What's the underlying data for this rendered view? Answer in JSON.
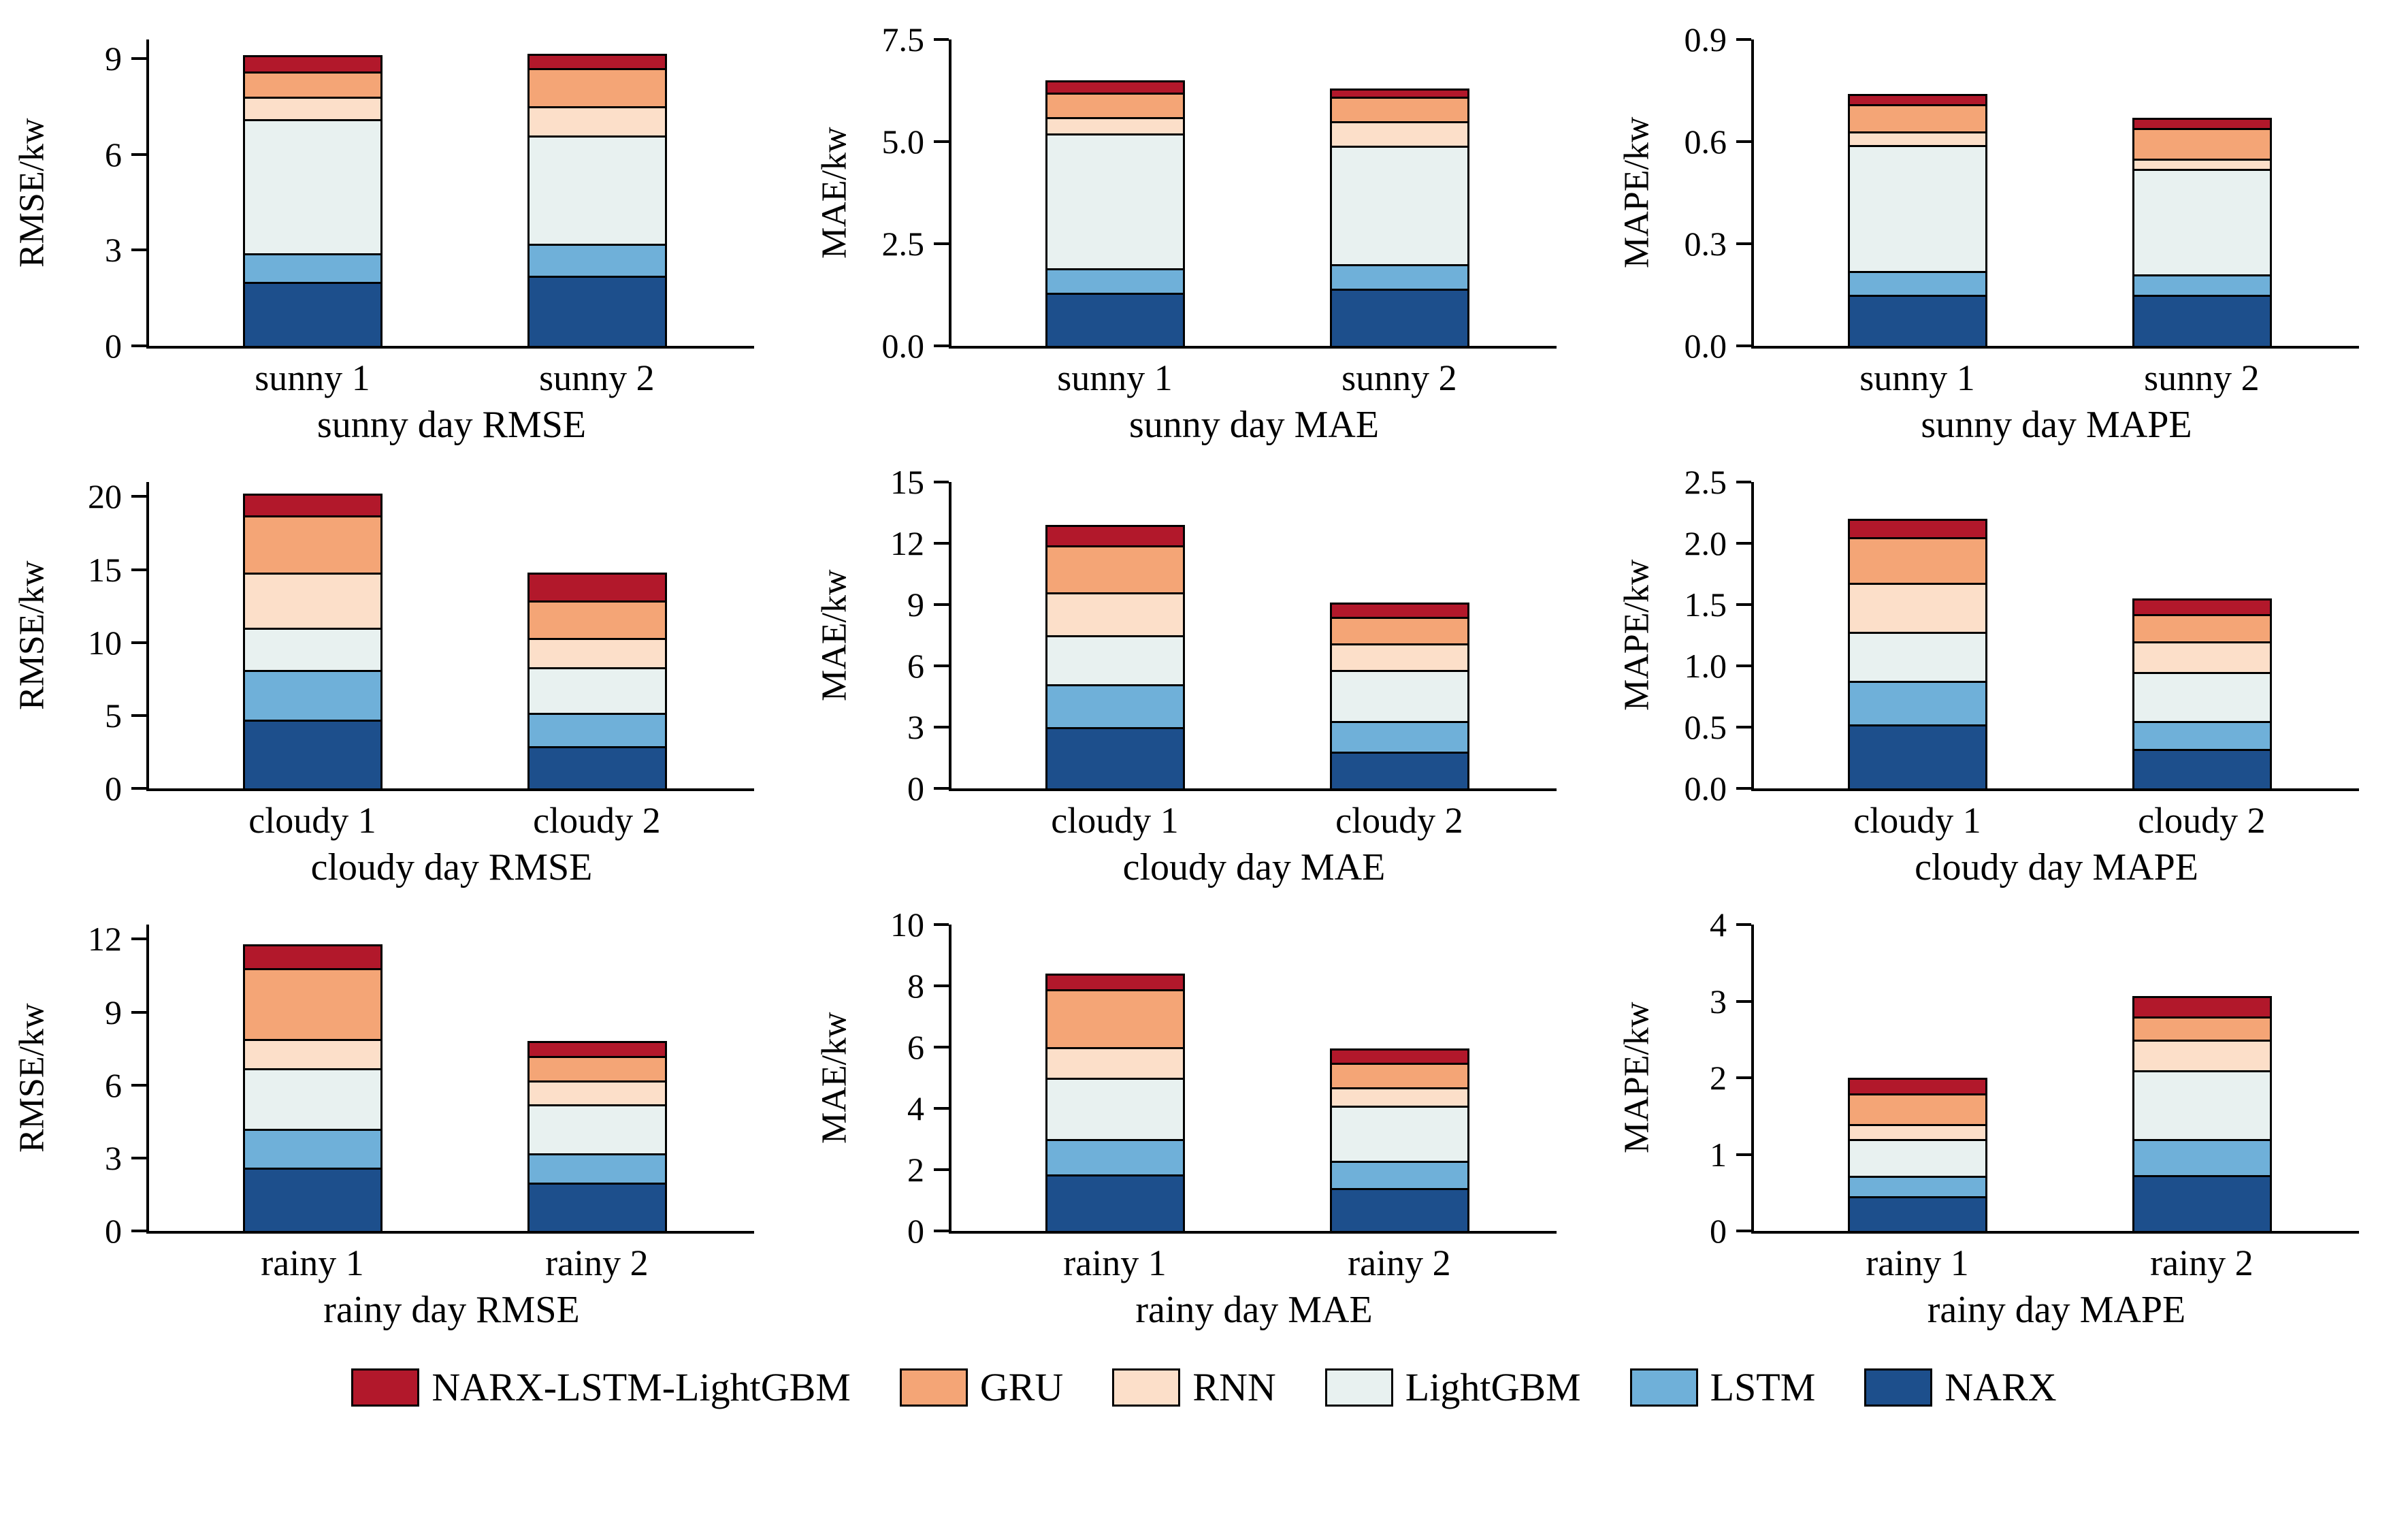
{
  "page": {
    "background": "#ffffff"
  },
  "legend": {
    "items": [
      {
        "label": "NARX-LSTM-LightGBM",
        "color": "#b2182b"
      },
      {
        "label": "GRU",
        "color": "#f4a576"
      },
      {
        "label": "RNN",
        "color": "#fcdfc9"
      },
      {
        "label": "LightGBM",
        "color": "#e8f1f0"
      },
      {
        "label": "LSTM",
        "color": "#6fb0d9"
      },
      {
        "label": "NARX",
        "color": "#1d4f8c"
      }
    ]
  },
  "chart_data": [
    {
      "type": "bar",
      "title": "sunny day RMSE",
      "ylabel": "RMSE/kw",
      "categories": [
        "sunny 1",
        "sunny 2"
      ],
      "ylim": [
        0,
        9.6
      ],
      "yticks": [
        {
          "value": 0,
          "label": "0"
        },
        {
          "value": 3,
          "label": "3"
        },
        {
          "value": 6,
          "label": "6"
        },
        {
          "value": 9,
          "label": "9"
        }
      ],
      "series": [
        {
          "name": "NARX",
          "values": [
            2.0,
            2.2
          ]
        },
        {
          "name": "LSTM",
          "values": [
            0.9,
            1.0
          ]
        },
        {
          "name": "LightGBM",
          "values": [
            4.2,
            3.4
          ]
        },
        {
          "name": "RNN",
          "values": [
            0.7,
            0.9
          ]
        },
        {
          "name": "GRU",
          "values": [
            0.8,
            1.2
          ]
        },
        {
          "name": "NARX-LSTM-LightGBM",
          "values": [
            0.5,
            0.45
          ]
        }
      ]
    },
    {
      "type": "bar",
      "title": "sunny day MAE",
      "ylabel": "MAE/kw",
      "categories": [
        "sunny 1",
        "sunny 2"
      ],
      "ylim": [
        0,
        7.5
      ],
      "yticks": [
        {
          "value": 0,
          "label": "0.0"
        },
        {
          "value": 2.5,
          "label": "2.5"
        },
        {
          "value": 5.0,
          "label": "5.0"
        },
        {
          "value": 7.5,
          "label": "7.5"
        }
      ],
      "series": [
        {
          "name": "NARX",
          "values": [
            1.3,
            1.4
          ]
        },
        {
          "name": "LSTM",
          "values": [
            0.6,
            0.6
          ]
        },
        {
          "name": "LightGBM",
          "values": [
            3.3,
            2.9
          ]
        },
        {
          "name": "RNN",
          "values": [
            0.4,
            0.6
          ]
        },
        {
          "name": "GRU",
          "values": [
            0.6,
            0.6
          ]
        },
        {
          "name": "NARX-LSTM-LightGBM",
          "values": [
            0.3,
            0.2
          ]
        }
      ]
    },
    {
      "type": "bar",
      "title": "sunny day MAPE",
      "ylabel": "MAPE/kw",
      "categories": [
        "sunny 1",
        "sunny 2"
      ],
      "ylim": [
        0,
        0.9
      ],
      "yticks": [
        {
          "value": 0,
          "label": "0.0"
        },
        {
          "value": 0.3,
          "label": "0.3"
        },
        {
          "value": 0.6,
          "label": "0.6"
        },
        {
          "value": 0.9,
          "label": "0.9"
        }
      ],
      "series": [
        {
          "name": "NARX",
          "values": [
            0.15,
            0.15
          ]
        },
        {
          "name": "LSTM",
          "values": [
            0.07,
            0.06
          ]
        },
        {
          "name": "LightGBM",
          "values": [
            0.37,
            0.31
          ]
        },
        {
          "name": "RNN",
          "values": [
            0.04,
            0.03
          ]
        },
        {
          "name": "GRU",
          "values": [
            0.08,
            0.09
          ]
        },
        {
          "name": "NARX-LSTM-LightGBM",
          "values": [
            0.03,
            0.03
          ]
        }
      ]
    },
    {
      "type": "bar",
      "title": "cloudy day RMSE",
      "ylabel": "RMSE/kw",
      "categories": [
        "cloudy 1",
        "cloudy 2"
      ],
      "ylim": [
        0,
        21
      ],
      "yticks": [
        {
          "value": 0,
          "label": "0"
        },
        {
          "value": 5,
          "label": "5"
        },
        {
          "value": 10,
          "label": "10"
        },
        {
          "value": 15,
          "label": "15"
        },
        {
          "value": 20,
          "label": "20"
        }
      ],
      "series": [
        {
          "name": "NARX",
          "values": [
            4.7,
            2.9
          ]
        },
        {
          "name": "LSTM",
          "values": [
            3.4,
            2.3
          ]
        },
        {
          "name": "LightGBM",
          "values": [
            2.9,
            3.1
          ]
        },
        {
          "name": "RNN",
          "values": [
            3.8,
            2.0
          ]
        },
        {
          "name": "GRU",
          "values": [
            3.9,
            2.6
          ]
        },
        {
          "name": "NARX-LSTM-LightGBM",
          "values": [
            1.5,
            1.9
          ]
        }
      ]
    },
    {
      "type": "bar",
      "title": "cloudy day MAE",
      "ylabel": "MAE/kw",
      "categories": [
        "cloudy 1",
        "cloudy 2"
      ],
      "ylim": [
        0,
        15
      ],
      "yticks": [
        {
          "value": 0,
          "label": "0"
        },
        {
          "value": 3,
          "label": "3"
        },
        {
          "value": 6,
          "label": "6"
        },
        {
          "value": 9,
          "label": "9"
        },
        {
          "value": 12,
          "label": "12"
        },
        {
          "value": 15,
          "label": "15"
        }
      ],
      "series": [
        {
          "name": "NARX",
          "values": [
            3.0,
            1.8
          ]
        },
        {
          "name": "LSTM",
          "values": [
            2.1,
            1.5
          ]
        },
        {
          "name": "LightGBM",
          "values": [
            2.4,
            2.5
          ]
        },
        {
          "name": "RNN",
          "values": [
            2.1,
            1.3
          ]
        },
        {
          "name": "GRU",
          "values": [
            2.3,
            1.3
          ]
        },
        {
          "name": "NARX-LSTM-LightGBM",
          "values": [
            1.0,
            0.7
          ]
        }
      ]
    },
    {
      "type": "bar",
      "title": "cloudy day MAPE",
      "ylabel": "MAPE/kw",
      "categories": [
        "cloudy 1",
        "cloudy 2"
      ],
      "ylim": [
        0,
        2.5
      ],
      "yticks": [
        {
          "value": 0,
          "label": "0.0"
        },
        {
          "value": 0.5,
          "label": "0.5"
        },
        {
          "value": 1.0,
          "label": "1.0"
        },
        {
          "value": 1.5,
          "label": "1.5"
        },
        {
          "value": 2.0,
          "label": "2.0"
        },
        {
          "value": 2.5,
          "label": "2.5"
        }
      ],
      "series": [
        {
          "name": "NARX",
          "values": [
            0.52,
            0.32
          ]
        },
        {
          "name": "LSTM",
          "values": [
            0.36,
            0.23
          ]
        },
        {
          "name": "LightGBM",
          "values": [
            0.4,
            0.4
          ]
        },
        {
          "name": "RNN",
          "values": [
            0.4,
            0.25
          ]
        },
        {
          "name": "GRU",
          "values": [
            0.37,
            0.22
          ]
        },
        {
          "name": "NARX-LSTM-LightGBM",
          "values": [
            0.15,
            0.13
          ]
        }
      ]
    },
    {
      "type": "bar",
      "title": "rainy day RMSE",
      "ylabel": "RMSE/kw",
      "categories": [
        "rainy 1",
        "rainy 2"
      ],
      "ylim": [
        0,
        12.6
      ],
      "yticks": [
        {
          "value": 0,
          "label": "0"
        },
        {
          "value": 3,
          "label": "3"
        },
        {
          "value": 6,
          "label": "6"
        },
        {
          "value": 9,
          "label": "9"
        },
        {
          "value": 12,
          "label": "12"
        }
      ],
      "series": [
        {
          "name": "NARX",
          "values": [
            2.6,
            2.0
          ]
        },
        {
          "name": "LSTM",
          "values": [
            1.6,
            1.2
          ]
        },
        {
          "name": "LightGBM",
          "values": [
            2.5,
            2.0
          ]
        },
        {
          "name": "RNN",
          "values": [
            1.2,
            1.0
          ]
        },
        {
          "name": "GRU",
          "values": [
            2.9,
            1.0
          ]
        },
        {
          "name": "NARX-LSTM-LightGBM",
          "values": [
            1.0,
            0.6
          ]
        }
      ]
    },
    {
      "type": "bar",
      "title": "rainy day MAE",
      "ylabel": "MAE/kw",
      "categories": [
        "rainy 1",
        "rainy 2"
      ],
      "ylim": [
        0,
        10
      ],
      "yticks": [
        {
          "value": 0,
          "label": "0"
        },
        {
          "value": 2,
          "label": "2"
        },
        {
          "value": 4,
          "label": "4"
        },
        {
          "value": 6,
          "label": "6"
        },
        {
          "value": 8,
          "label": "8"
        },
        {
          "value": 10,
          "label": "10"
        }
      ],
      "series": [
        {
          "name": "NARX",
          "values": [
            1.85,
            1.4
          ]
        },
        {
          "name": "LSTM",
          "values": [
            1.15,
            0.9
          ]
        },
        {
          "name": "LightGBM",
          "values": [
            2.0,
            1.8
          ]
        },
        {
          "name": "RNN",
          "values": [
            1.0,
            0.6
          ]
        },
        {
          "name": "GRU",
          "values": [
            1.9,
            0.8
          ]
        },
        {
          "name": "NARX-LSTM-LightGBM",
          "values": [
            0.5,
            0.45
          ]
        }
      ]
    },
    {
      "type": "bar",
      "title": "rainy day MAPE",
      "ylabel": "MAPE/kw",
      "categories": [
        "rainy 1",
        "rainy 2"
      ],
      "ylim": [
        0,
        4
      ],
      "yticks": [
        {
          "value": 0,
          "label": "0"
        },
        {
          "value": 1,
          "label": "1"
        },
        {
          "value": 2,
          "label": "2"
        },
        {
          "value": 3,
          "label": "3"
        },
        {
          "value": 4,
          "label": "4"
        }
      ],
      "series": [
        {
          "name": "NARX",
          "values": [
            0.45,
            0.73
          ]
        },
        {
          "name": "LSTM",
          "values": [
            0.27,
            0.47
          ]
        },
        {
          "name": "LightGBM",
          "values": [
            0.48,
            0.9
          ]
        },
        {
          "name": "RNN",
          "values": [
            0.2,
            0.4
          ]
        },
        {
          "name": "GRU",
          "values": [
            0.4,
            0.3
          ]
        },
        {
          "name": "NARX-LSTM-LightGBM",
          "values": [
            0.2,
            0.27
          ]
        }
      ]
    }
  ]
}
